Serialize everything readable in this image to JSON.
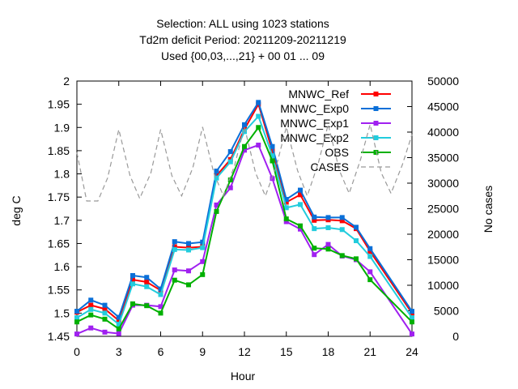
{
  "title_lines": [
    "Selection: ALL using  1023 stations",
    "Td2m deficit   Period: 20211209-20211219",
    "Used {00,03,...,21} + 00 01 ... 09"
  ],
  "chart_data": {
    "type": "line",
    "ylabel": "deg C",
    "y2label": "No cases",
    "xlabel": "Hour",
    "xlim": [
      0,
      24
    ],
    "ylim": [
      1.45,
      2.0
    ],
    "y2lim": [
      0,
      50000
    ],
    "x_ticks": [
      0,
      3,
      6,
      9,
      12,
      15,
      18,
      21,
      24
    ],
    "y_ticks": [
      "1.45",
      "1.5",
      "1.55",
      "1.6",
      "1.65",
      "1.7",
      "1.75",
      "1.8",
      "1.85",
      "1.9",
      "1.95",
      "2"
    ],
    "y2_ticks": [
      "0",
      "5000",
      "10000",
      "15000",
      "20000",
      "25000",
      "30000",
      "35000",
      "40000",
      "45000",
      "50000"
    ],
    "x": [
      0,
      1,
      2,
      3,
      4,
      5,
      6,
      7,
      8,
      9,
      10,
      11,
      12,
      13,
      14,
      15,
      16,
      17,
      18,
      19,
      20,
      21,
      24
    ],
    "legend_position": "top-right",
    "series": [
      {
        "name": "MNWC_Ref",
        "color": "#ff0000",
        "axis": "y1",
        "marker": "square",
        "values": [
          1.502,
          1.517,
          1.509,
          1.484,
          1.572,
          1.567,
          1.549,
          1.643,
          1.641,
          1.643,
          1.796,
          1.831,
          1.896,
          1.95,
          1.849,
          1.739,
          1.755,
          1.7,
          1.701,
          1.699,
          1.682,
          1.633,
          1.5
        ]
      },
      {
        "name": "MNWC_Exp0",
        "color": "#0a6fd8",
        "axis": "y1",
        "marker": "square",
        "values": [
          1.504,
          1.528,
          1.517,
          1.491,
          1.581,
          1.577,
          1.552,
          1.654,
          1.65,
          1.653,
          1.806,
          1.848,
          1.906,
          1.954,
          1.859,
          1.745,
          1.765,
          1.707,
          1.706,
          1.706,
          1.685,
          1.639,
          1.504
        ]
      },
      {
        "name": "MNWC_Exp1",
        "color": "#a020f0",
        "axis": "y1",
        "marker": "square",
        "values": [
          1.455,
          1.468,
          1.459,
          1.456,
          1.517,
          1.517,
          1.514,
          1.593,
          1.591,
          1.611,
          1.733,
          1.77,
          1.851,
          1.862,
          1.79,
          1.697,
          1.681,
          1.626,
          1.648,
          1.623,
          1.615,
          1.589,
          1.455
        ]
      },
      {
        "name": "MNWC_Exp2",
        "color": "#22ccdd",
        "axis": "y1",
        "marker": "square",
        "values": [
          1.49,
          1.508,
          1.5,
          1.476,
          1.563,
          1.557,
          1.54,
          1.637,
          1.636,
          1.641,
          1.791,
          1.826,
          1.891,
          1.924,
          1.839,
          1.727,
          1.734,
          1.682,
          1.684,
          1.68,
          1.656,
          1.622,
          1.49
        ]
      },
      {
        "name": "OBS",
        "color": "#00b000",
        "axis": "y1",
        "marker": "square",
        "values": [
          1.481,
          1.496,
          1.487,
          1.466,
          1.52,
          1.516,
          1.5,
          1.571,
          1.561,
          1.583,
          1.719,
          1.787,
          1.859,
          1.9,
          1.828,
          1.703,
          1.688,
          1.64,
          1.638,
          1.624,
          1.617,
          1.572,
          1.481
        ]
      },
      {
        "name": "CASES",
        "color": "#999999",
        "axis": "y2",
        "dashed": true,
        "x": [
          0,
          0.7,
          1.5,
          2.2,
          3.0,
          3.8,
          4.5,
          5.3,
          6.0,
          6.8,
          7.5,
          8.3,
          9.0,
          9.8,
          10.5,
          11.3,
          12.0,
          12.8,
          13.5,
          14.3,
          15.0,
          15.8,
          16.5,
          17.3,
          18.0,
          18.8,
          19.5,
          20.3,
          21.0,
          21.8,
          22.5,
          23.3,
          24.0
        ],
        "values": [
          36000,
          26500,
          26500,
          31000,
          40500,
          31500,
          27000,
          32000,
          40500,
          31500,
          27500,
          33000,
          41000,
          32000,
          27500,
          33500,
          41000,
          32000,
          27500,
          33500,
          41000,
          32500,
          27500,
          34000,
          41500,
          32500,
          28000,
          34500,
          41500,
          32000,
          28000,
          33500,
          39500
        ]
      }
    ]
  }
}
